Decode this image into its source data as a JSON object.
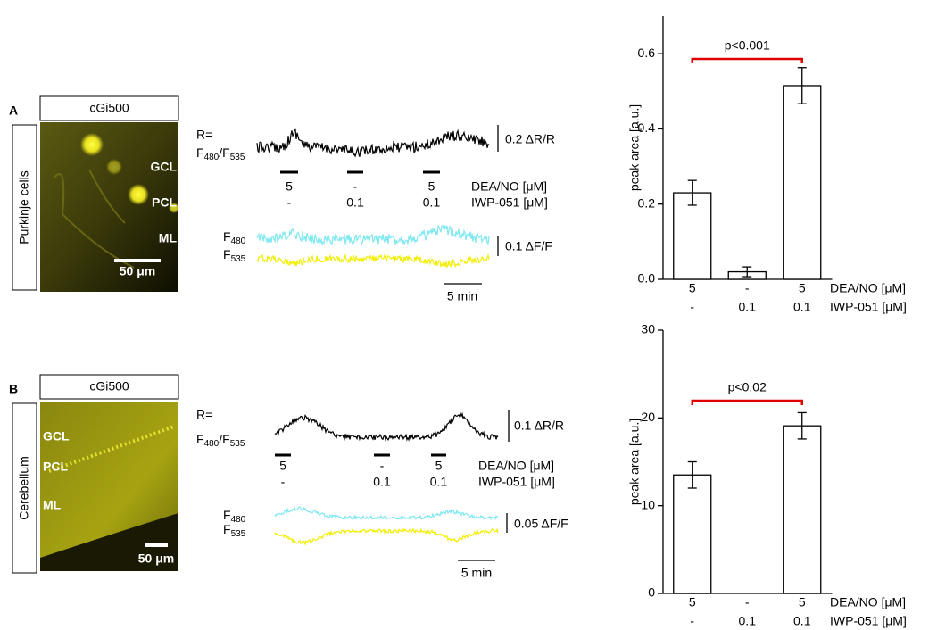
{
  "panels": [
    {
      "label": "A",
      "header": "cGi500",
      "side_label": "Purkinje cells",
      "image_labels": [
        "GCL",
        "PCL",
        "ML"
      ],
      "scale_bar": "50 μm",
      "ratio_prefix": "R=",
      "ratio": [
        {
          "base": "F",
          "sub": "480"
        },
        {
          "base": "/F",
          "sub": "535"
        }
      ],
      "ratio_scale": "0.2 ΔR/R",
      "stim_rows": [
        {
          "name": "DEA/NO [μM]",
          "labels": [
            "5",
            "-",
            "5"
          ]
        },
        {
          "name": "IWP-051 [μM]",
          "labels": [
            "-",
            "0.1",
            "0.1"
          ]
        }
      ],
      "channels": [
        {
          "base": "F",
          "sub": "480"
        },
        {
          "base": "F",
          "sub": "535"
        }
      ],
      "channel_scale": "0.1 ΔF/F",
      "time_scale": "5 min"
    },
    {
      "label": "B",
      "header": "cGi500",
      "side_label": "Cerebellum",
      "image_labels": [
        "GCL",
        "PCL",
        "ML"
      ],
      "scale_bar": "50 μm",
      "ratio_prefix": "R=",
      "ratio": [
        {
          "base": "F",
          "sub": "480"
        },
        {
          "base": "/F",
          "sub": "535"
        }
      ],
      "ratio_scale": "0.1 ΔR/R",
      "stim_rows": [
        {
          "name": "DEA/NO [μM]",
          "labels": [
            "5",
            "-",
            "5"
          ]
        },
        {
          "name": "IWP-051 [μM]",
          "labels": [
            "-",
            "0.1",
            "0.1"
          ]
        }
      ],
      "channels": [
        {
          "base": "F",
          "sub": "480"
        },
        {
          "base": "F",
          "sub": "535"
        }
      ],
      "channel_scale": "0.05 ΔF/F",
      "time_scale": "5 min"
    }
  ],
  "chart_data": [
    {
      "type": "bar",
      "ylabel": "peak area [a.u.]",
      "category_rows": [
        {
          "name": "DEA/NO [μM]",
          "labels": [
            "5",
            "-",
            "5"
          ]
        },
        {
          "name": "IWP-051 [μM]",
          "labels": [
            "-",
            "0.1",
            "0.1"
          ]
        }
      ],
      "values": [
        0.23,
        0.02,
        0.515
      ],
      "errors": [
        0.033,
        0.013,
        0.048
      ],
      "color": "#ffffff",
      "edge_color": "#000000",
      "ylim": [
        0,
        0.7
      ],
      "yticks": [
        {
          "value": 0,
          "label": "0.0"
        },
        0.2,
        0.4,
        0.6
      ],
      "annotation": "p<0.001",
      "annotation_color": "#e00000"
    },
    {
      "type": "bar",
      "ylabel": "peak area [a.u.]",
      "category_rows": [
        {
          "name": "DEA/NO [μM]",
          "labels": [
            "5",
            "-",
            "5"
          ]
        },
        {
          "name": "IWP-051 [μM]",
          "labels": [
            "-",
            "0.1",
            "0.1"
          ]
        }
      ],
      "values": [
        13.5,
        null,
        19.1
      ],
      "errors": [
        1.5,
        null,
        1.5
      ],
      "color": "#ffffff",
      "edge_color": "#000000",
      "ylim": [
        0,
        30
      ],
      "yticks": [
        0,
        10,
        20,
        30
      ],
      "annotation": "p<0.02",
      "annotation_color": "#e00000"
    }
  ]
}
